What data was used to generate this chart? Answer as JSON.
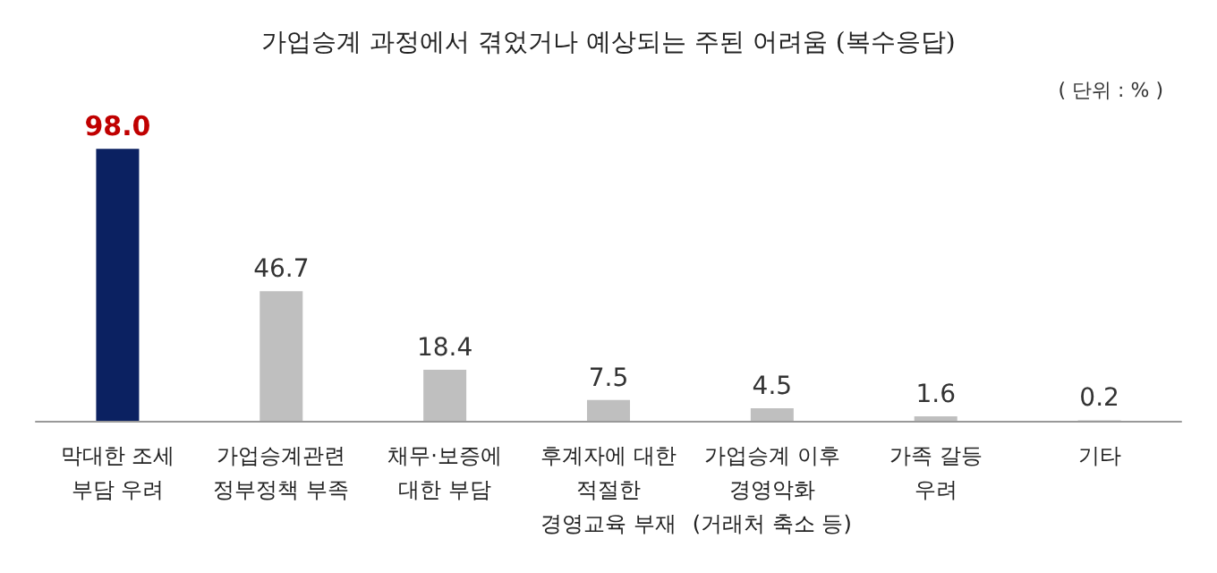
{
  "chart_data": {
    "type": "bar",
    "title": "가업승계 과정에서 겪었거나 예상되는 주된 어려움 (복수응답)",
    "annotations": [
      "( 단위 : % )"
    ],
    "categories": [
      "막대한 조세\n부담 우려",
      "가업승계관련\n정부정책 부족",
      "채무·보증에\n대한 부담",
      "후계자에 대한\n적절한\n경영교육 부재",
      "가업승계 이후\n경영악화\n(거래처 축소 등)",
      "가족 갈등\n우려",
      "기타"
    ],
    "values": [
      98.0,
      46.7,
      18.4,
      7.5,
      4.5,
      1.6,
      0.2
    ],
    "colors": [
      "#0b2161",
      "#bfbfbf",
      "#bfbfbf",
      "#bfbfbf",
      "#bfbfbf",
      "#bfbfbf",
      "#bfbfbf"
    ],
    "value_labels": [
      "98.0",
      "46.7",
      "18.4",
      "7.5",
      "4.5",
      "1.6",
      "0.2"
    ]
  }
}
